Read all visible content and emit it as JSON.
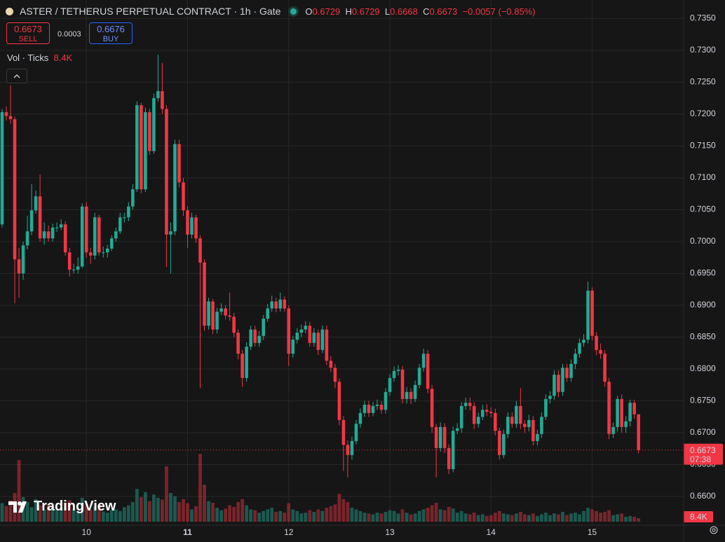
{
  "chart_data": {
    "type": "candlestick",
    "title": "ASTER / TETHERUS PERPETUAL CONTRACT · 1h · Gate",
    "ohlc_letters": [
      "O",
      "H",
      "L",
      "C"
    ],
    "change": {
      "value": -0.0057,
      "label": "−0.0057"
    },
    "change_percent": {
      "value": -0.85,
      "label": "(−0.85%)"
    },
    "sell": {
      "price": 0.6673,
      "label": "SELL"
    },
    "spread": 0.0003,
    "buy": {
      "price": 0.6676,
      "label": "BUY"
    },
    "volume_title": "Vol · Ticks",
    "volume_last_label": "8.4K",
    "countdown": "07:38",
    "logo": "TradingView",
    "up_color": "#22ab94",
    "down_color": "#f23645",
    "ylim": [
      0.6555,
      0.7379
    ],
    "yticks": [
      {
        "value": 0.66,
        "label": "0.6600"
      },
      {
        "value": 0.665,
        "label": "0.6650"
      },
      {
        "value": 0.67,
        "label": "0.6700"
      },
      {
        "value": 0.675,
        "label": "0.6750"
      },
      {
        "value": 0.68,
        "label": "0.6800"
      },
      {
        "value": 0.685,
        "label": "0.6850"
      },
      {
        "value": 0.69,
        "label": "0.6900"
      },
      {
        "value": 0.695,
        "label": "0.6950"
      },
      {
        "value": 0.7,
        "label": "0.7000"
      },
      {
        "value": 0.705,
        "label": "0.7050"
      },
      {
        "value": 0.71,
        "label": "0.7100"
      },
      {
        "value": 0.715,
        "label": "0.7150"
      },
      {
        "value": 0.72,
        "label": "0.7200"
      },
      {
        "value": 0.725,
        "label": "0.7250"
      },
      {
        "value": 0.73,
        "label": "0.7300"
      },
      {
        "value": 0.735,
        "label": "0.7350"
      }
    ],
    "xlim": [
      -0.5,
      161.7
    ],
    "xticks": [
      {
        "value": 20,
        "label": "10"
      },
      {
        "value": 44,
        "label": "11"
      },
      {
        "value": 68,
        "label": "12"
      },
      {
        "value": 92,
        "label": "13"
      },
      {
        "value": 116,
        "label": "14"
      },
      {
        "value": 140,
        "label": "15"
      }
    ],
    "y2lim": [
      0,
      1270000
    ],
    "open": [
      0.7027,
      0.7203,
      0.7197,
      0.7192,
      0.6972,
      0.695,
      0.6994,
      0.7016,
      0.7049,
      0.7071,
      0.7005,
      0.7016,
      0.7005,
      0.7022,
      0.7022,
      0.7027,
      0.6983,
      0.6956,
      0.6956,
      0.6961,
      0.7055,
      0.6983,
      0.6978,
      0.7038,
      0.6983,
      0.6983,
      0.6989,
      0.7005,
      0.7016,
      0.7038,
      0.7038,
      0.7055,
      0.7082,
      0.7214,
      0.7082,
      0.7203,
      0.7142,
      0.7225,
      0.7236,
      0.7208,
      0.7011,
      0.7016,
      0.7153,
      0.7093,
      0.7049,
      0.7011,
      0.7038,
      0.7005,
      0.6967,
      0.6868,
      0.6906,
      0.6862,
      0.689,
      0.6895,
      0.6884,
      0.6882,
      0.6857,
      0.6824,
      0.6786,
      0.6835,
      0.6862,
      0.6841,
      0.6852,
      0.6879,
      0.6895,
      0.6906,
      0.6895,
      0.6909,
      0.6895,
      0.6824,
      0.6846,
      0.6857,
      0.6862,
      0.6868,
      0.6841,
      0.6857,
      0.683,
      0.6862,
      0.6813,
      0.6802,
      0.678,
      0.672,
      0.6681,
      0.6665,
      0.6687,
      0.6714,
      0.6731,
      0.6744,
      0.6731,
      0.6742,
      0.6744,
      0.6736,
      0.6764,
      0.6786,
      0.6797,
      0.6799,
      0.6753,
      0.6764,
      0.6753,
      0.6775,
      0.6802,
      0.6824,
      0.6769,
      0.6709,
      0.6676,
      0.6709,
      0.6676,
      0.6643,
      0.6703,
      0.6707,
      0.6742,
      0.6747,
      0.6742,
      0.6714,
      0.6725,
      0.6736,
      0.6733,
      0.6731,
      0.6703,
      0.6665,
      0.6698,
      0.6725,
      0.6714,
      0.6742,
      0.6714,
      0.6709,
      0.672,
      0.6687,
      0.6698,
      0.6725,
      0.6753,
      0.6758,
      0.6791,
      0.6764,
      0.6802,
      0.6786,
      0.6808,
      0.6824,
      0.6841,
      0.6846,
      0.6923,
      0.6852,
      0.683,
      0.6824,
      0.678,
      0.6698,
      0.6709,
      0.6753,
      0.6709,
      0.6718,
      0.6747,
      0.6729
    ],
    "high": [
      0.7208,
      0.7212,
      0.7245,
      0.7196,
      0.699,
      0.7,
      0.704,
      0.709,
      0.708,
      0.7105,
      0.703,
      0.7025,
      0.7028,
      0.703,
      0.7035,
      0.7032,
      0.699,
      0.6965,
      0.6975,
      0.706,
      0.7062,
      0.699,
      0.7045,
      0.7042,
      0.6992,
      0.6995,
      0.701,
      0.7022,
      0.7045,
      0.7045,
      0.7062,
      0.709,
      0.722,
      0.7218,
      0.721,
      0.7208,
      0.7232,
      0.7293,
      0.728,
      0.7214,
      0.703,
      0.716,
      0.716,
      0.71,
      0.7055,
      0.7045,
      0.7042,
      0.701,
      0.6972,
      0.6912,
      0.691,
      0.6896,
      0.6903,
      0.69,
      0.692,
      0.6888,
      0.6862,
      0.683,
      0.6842,
      0.6868,
      0.6868,
      0.686,
      0.6885,
      0.6902,
      0.6915,
      0.6912,
      0.692,
      0.6914,
      0.69,
      0.6852,
      0.6864,
      0.687,
      0.6875,
      0.6874,
      0.6864,
      0.6862,
      0.6868,
      0.6868,
      0.682,
      0.6808,
      0.6785,
      0.6726,
      0.6688,
      0.6694,
      0.672,
      0.6738,
      0.675,
      0.675,
      0.6748,
      0.6752,
      0.675,
      0.677,
      0.6792,
      0.6804,
      0.6806,
      0.6805,
      0.6772,
      0.677,
      0.6782,
      0.6808,
      0.6832,
      0.683,
      0.6775,
      0.6714,
      0.6716,
      0.6715,
      0.6682,
      0.671,
      0.6715,
      0.6748,
      0.6755,
      0.6755,
      0.6748,
      0.6732,
      0.6744,
      0.6745,
      0.674,
      0.6738,
      0.6708,
      0.6705,
      0.6732,
      0.6732,
      0.675,
      0.677,
      0.672,
      0.6728,
      0.6726,
      0.6705,
      0.6732,
      0.676,
      0.6765,
      0.6798,
      0.6798,
      0.6808,
      0.6808,
      0.6815,
      0.6832,
      0.6848,
      0.6855,
      0.6937,
      0.6928,
      0.6858,
      0.684,
      0.683,
      0.6786,
      0.6716,
      0.6758,
      0.676,
      0.6726,
      0.6752,
      0.6752,
      0.6729
    ],
    "low": [
      0.7022,
      0.719,
      0.7185,
      0.6903,
      0.6912,
      0.694,
      0.6988,
      0.701,
      0.7044,
      0.7,
      0.6995,
      0.7,
      0.7,
      0.7015,
      0.7018,
      0.6978,
      0.6945,
      0.695,
      0.695,
      0.6958,
      0.6975,
      0.6965,
      0.6972,
      0.6978,
      0.6975,
      0.6975,
      0.6985,
      0.7,
      0.7012,
      0.703,
      0.7032,
      0.705,
      0.7078,
      0.7076,
      0.7078,
      0.7136,
      0.7138,
      0.722,
      0.72,
      0.696,
      0.695,
      0.701,
      0.7085,
      0.704,
      0.699,
      0.7005,
      0.6998,
      0.677,
      0.686,
      0.6862,
      0.6855,
      0.6856,
      0.6885,
      0.6878,
      0.6876,
      0.685,
      0.6815,
      0.6772,
      0.678,
      0.683,
      0.6835,
      0.6835,
      0.6846,
      0.6874,
      0.689,
      0.6889,
      0.689,
      0.689,
      0.6805,
      0.6818,
      0.684,
      0.685,
      0.6856,
      0.6835,
      0.6835,
      0.6822,
      0.6825,
      0.6806,
      0.6795,
      0.677,
      0.6712,
      0.664,
      0.663,
      0.6658,
      0.6682,
      0.6708,
      0.6725,
      0.6725,
      0.6726,
      0.6736,
      0.673,
      0.673,
      0.6758,
      0.678,
      0.679,
      0.6746,
      0.6746,
      0.6745,
      0.6748,
      0.677,
      0.6796,
      0.6762,
      0.67,
      0.663,
      0.667,
      0.6668,
      0.6635,
      0.6638,
      0.6698,
      0.67,
      0.6736,
      0.6735,
      0.6706,
      0.6708,
      0.672,
      0.6726,
      0.6724,
      0.6696,
      0.6658,
      0.666,
      0.6692,
      0.6708,
      0.6708,
      0.6706,
      0.67,
      0.6702,
      0.668,
      0.668,
      0.6692,
      0.672,
      0.6746,
      0.6752,
      0.6756,
      0.6758,
      0.678,
      0.678,
      0.68,
      0.6818,
      0.6835,
      0.684,
      0.6845,
      0.6822,
      0.6816,
      0.6772,
      0.669,
      0.6692,
      0.6702,
      0.67,
      0.67,
      0.671,
      0.6722,
      0.6668
    ],
    "close": [
      0.7203,
      0.7197,
      0.7192,
      0.6972,
      0.695,
      0.6994,
      0.7016,
      0.7049,
      0.7071,
      0.7005,
      0.7016,
      0.7005,
      0.7022,
      0.7022,
      0.7027,
      0.6983,
      0.6956,
      0.6956,
      0.6961,
      0.7055,
      0.6983,
      0.6978,
      0.7038,
      0.6983,
      0.6983,
      0.6989,
      0.7005,
      0.7016,
      0.7038,
      0.7038,
      0.7055,
      0.7082,
      0.7214,
      0.7082,
      0.7203,
      0.7142,
      0.7225,
      0.7236,
      0.7208,
      0.7011,
      0.7016,
      0.7153,
      0.7093,
      0.7049,
      0.7011,
      0.7038,
      0.7005,
      0.6967,
      0.6868,
      0.6906,
      0.6862,
      0.689,
      0.6895,
      0.6884,
      0.6882,
      0.6857,
      0.6824,
      0.6786,
      0.6835,
      0.6862,
      0.6841,
      0.6852,
      0.6879,
      0.6895,
      0.6906,
      0.6895,
      0.6909,
      0.6895,
      0.6824,
      0.6846,
      0.6857,
      0.6862,
      0.6868,
      0.6841,
      0.6857,
      0.683,
      0.6862,
      0.6813,
      0.6802,
      0.678,
      0.672,
      0.6681,
      0.6665,
      0.6687,
      0.6714,
      0.6731,
      0.6744,
      0.6731,
      0.6742,
      0.6744,
      0.6736,
      0.6764,
      0.6786,
      0.6797,
      0.6799,
      0.6753,
      0.6764,
      0.6753,
      0.6775,
      0.6802,
      0.6824,
      0.6769,
      0.6709,
      0.6676,
      0.6709,
      0.6676,
      0.6643,
      0.6703,
      0.6707,
      0.6742,
      0.6747,
      0.6742,
      0.6714,
      0.6725,
      0.6736,
      0.6733,
      0.6731,
      0.6703,
      0.6665,
      0.6698,
      0.6725,
      0.6714,
      0.6742,
      0.6714,
      0.6709,
      0.672,
      0.6687,
      0.6698,
      0.6725,
      0.6753,
      0.6758,
      0.6791,
      0.6764,
      0.6802,
      0.6786,
      0.6808,
      0.6824,
      0.6841,
      0.6846,
      0.6923,
      0.6852,
      0.683,
      0.6824,
      0.678,
      0.6698,
      0.6709,
      0.6753,
      0.6709,
      0.6718,
      0.6747,
      0.6729,
      0.6673
    ],
    "volume": [
      45000,
      38000,
      52000,
      70000,
      150000,
      60000,
      48000,
      35000,
      55000,
      40000,
      30000,
      42000,
      36000,
      28000,
      33000,
      47000,
      52000,
      30000,
      26000,
      58000,
      44000,
      30000,
      38000,
      41000,
      25000,
      22000,
      28000,
      30000,
      26000,
      35000,
      40000,
      48000,
      80000,
      60000,
      72000,
      50000,
      66000,
      58000,
      54000,
      135000,
      70000,
      62000,
      48000,
      55000,
      45000,
      30000,
      38000,
      165000,
      90000,
      50000,
      46000,
      34000,
      28000,
      32000,
      40000,
      36000,
      48000,
      55000,
      40000,
      30000,
      28000,
      22000,
      26000,
      30000,
      34000,
      24000,
      26000,
      22000,
      45000,
      30000,
      26000,
      20000,
      22000,
      28000,
      24000,
      30000,
      26000,
      34000,
      38000,
      42000,
      68000,
      55000,
      48000,
      34000,
      30000,
      26000,
      22000,
      20000,
      18000,
      22000,
      20000,
      24000,
      28000,
      26000,
      20000,
      30000,
      22000,
      18000,
      20000,
      26000,
      30000,
      34000,
      40000,
      46000,
      30000,
      28000,
      36000,
      32000,
      22000,
      26000,
      20000,
      18000,
      22000,
      16000,
      18000,
      14000,
      16000,
      22000,
      26000,
      20000,
      18000,
      16000,
      20000,
      24000,
      18000,
      16000,
      20000,
      14000,
      18000,
      22000,
      16000,
      20000,
      18000,
      24000,
      16000,
      20000,
      22000,
      18000,
      26000,
      34000,
      30000,
      26000,
      22000,
      24000,
      28000,
      16000,
      18000,
      20000,
      12000,
      14000,
      12000,
      8400
    ]
  }
}
